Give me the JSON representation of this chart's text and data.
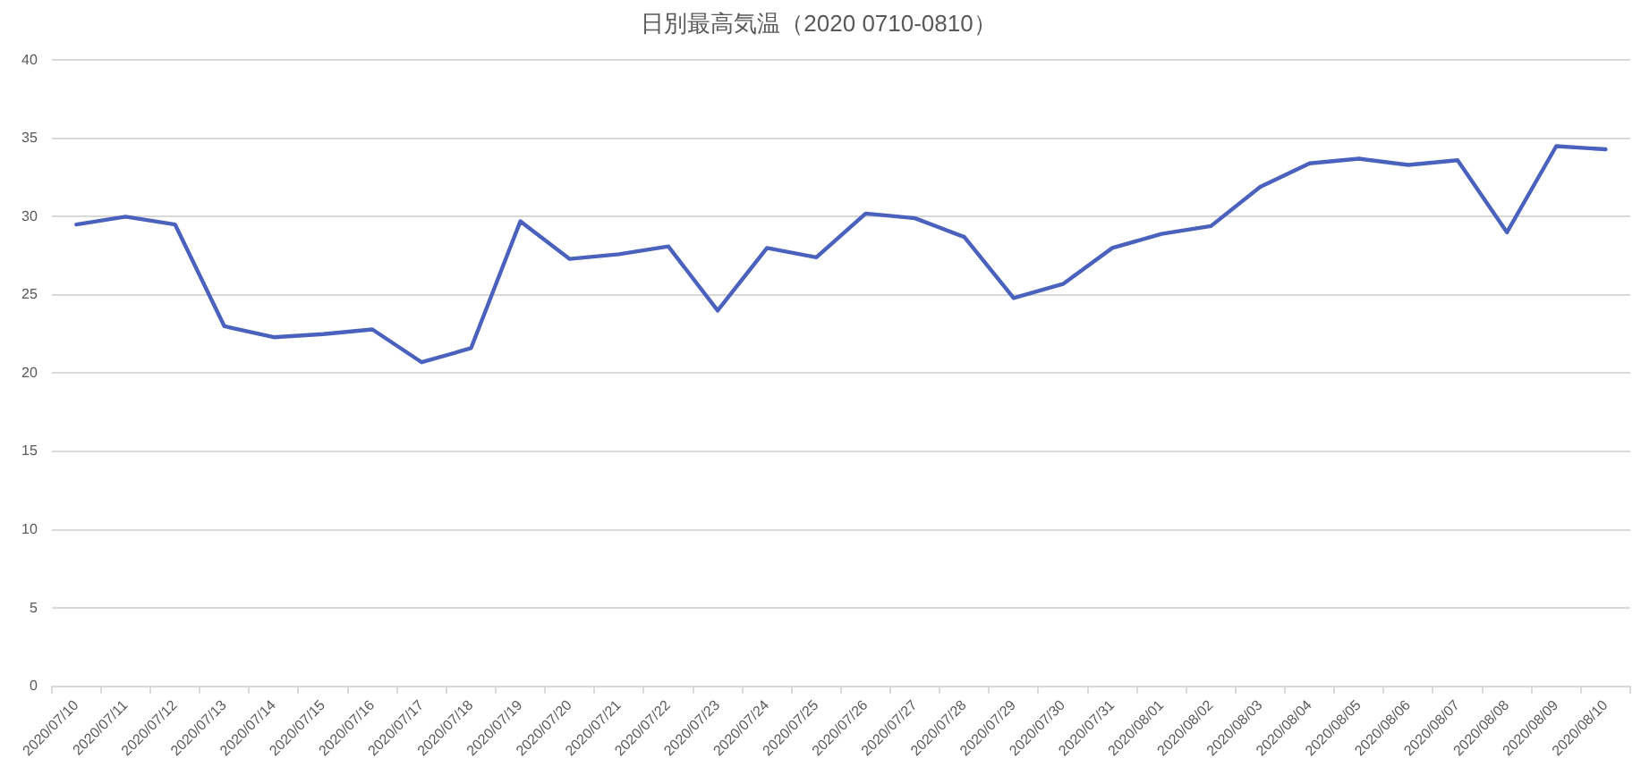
{
  "chart_data": {
    "type": "line",
    "title": "日別最高気温（2020 0710-0810）",
    "categories": [
      "2020/07/10",
      "2020/07/11",
      "2020/07/12",
      "2020/07/13",
      "2020/07/14",
      "2020/07/15",
      "2020/07/16",
      "2020/07/17",
      "2020/07/18",
      "2020/07/19",
      "2020/07/20",
      "2020/07/21",
      "2020/07/22",
      "2020/07/23",
      "2020/07/24",
      "2020/07/25",
      "2020/07/26",
      "2020/07/27",
      "2020/07/28",
      "2020/07/29",
      "2020/07/30",
      "2020/07/31",
      "2020/08/01",
      "2020/08/02",
      "2020/08/03",
      "2020/08/04",
      "2020/08/05",
      "2020/08/06",
      "2020/08/07",
      "2020/08/08",
      "2020/08/09",
      "2020/08/10"
    ],
    "series": [
      {
        "color": "#4a62be",
        "values": [
          29.5,
          30.0,
          29.5,
          23.0,
          22.3,
          22.5,
          22.8,
          20.7,
          21.6,
          29.7,
          27.3,
          27.6,
          28.1,
          24.0,
          28.0,
          27.4,
          30.2,
          29.9,
          28.7,
          24.8,
          25.7,
          28.0,
          28.9,
          29.4,
          31.9,
          33.4,
          33.7,
          33.3,
          33.6,
          29.0,
          34.5,
          34.3
        ]
      }
    ],
    "ylim": [
      0,
      40
    ],
    "yticks": [
      0,
      5,
      10,
      15,
      20,
      25,
      30,
      35,
      40
    ],
    "grid": "y",
    "marker": "none"
  }
}
